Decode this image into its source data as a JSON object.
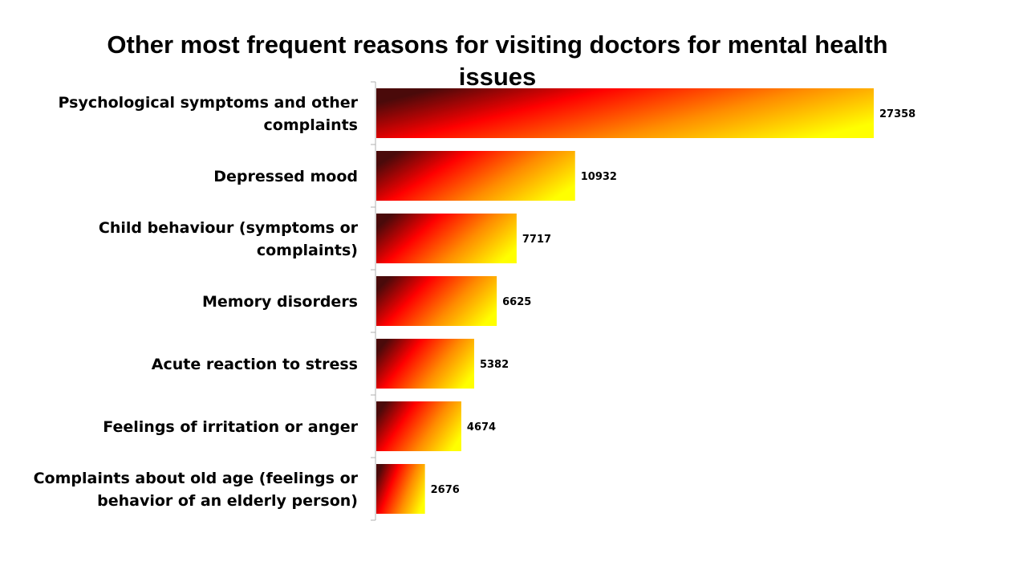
{
  "chart_data": {
    "type": "bar",
    "orientation": "horizontal",
    "title_lines": [
      "Other most frequent reasons for visiting doctors for mental health",
      "issues"
    ],
    "categories": [
      "Psychological symptoms and other complaints",
      "Depressed mood",
      "Child behaviour (symptoms or complaints)",
      "Memory disorders",
      "Acute reaction to stress",
      "Feelings of irritation or anger",
      "Complaints about old age (feelings or behavior of an elderly person)"
    ],
    "category_label_lines": [
      [
        "Psychological symptoms and other",
        "complaints"
      ],
      [
        "Depressed mood"
      ],
      [
        "Child behaviour (symptoms or",
        "complaints)"
      ],
      [
        "Memory disorders"
      ],
      [
        "Acute reaction to stress"
      ],
      [
        "Feelings of irritation or anger"
      ],
      [
        "Complaints about old age (feelings or",
        "behavior of an elderly person)"
      ]
    ],
    "values": [
      27358,
      10932,
      7717,
      6625,
      5382,
      4674,
      2676
    ],
    "value_labels": [
      "27358",
      "10932",
      "7717",
      "6625",
      "5382",
      "4674",
      "2676"
    ],
    "xlim": [
      0,
      30000
    ],
    "grid": false,
    "legend": "none",
    "gradient_colors": [
      "#4a0a0a",
      "#ff0000",
      "#ff8c00",
      "#ffff00"
    ]
  }
}
